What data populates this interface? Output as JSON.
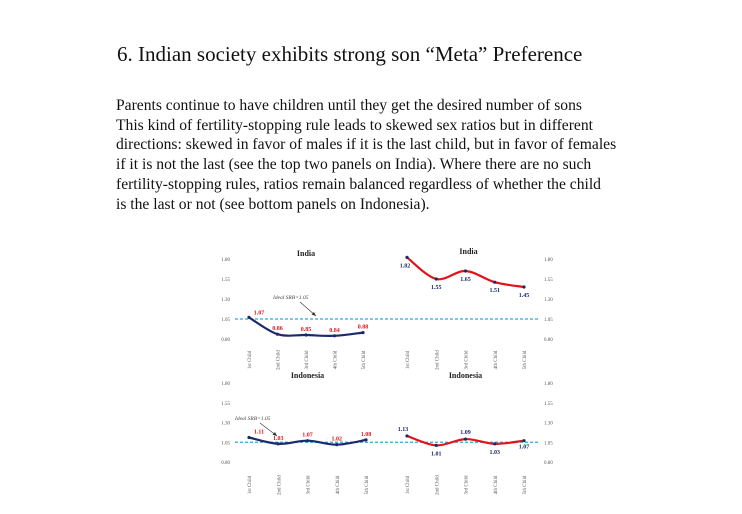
{
  "heading": "6. Indian society exhibits strong son “Meta” Preference",
  "paragraph_lines": [
    "Parents continue to have children until they get the desired number of sons",
    "This kind of fertility-stopping rule leads to skewed sex ratios but in different",
    "directions: skewed in favor of males if it is the last child, but in favor of females",
    "if it is not the last (see the top two panels on India). Where there are no such",
    "fertility-stopping rules, ratios remain balanced regardless of whether the child",
    "is the last or not (see bottom panels on Indonesia)."
  ],
  "colors": {
    "last_child_line": "#1b2a6b",
    "not_last_line": "#e3131b",
    "ideal_line": "#29a9e0",
    "marker": "#1b2a6b"
  },
  "chart_data": [
    {
      "type": "line",
      "title": "India",
      "categories": [
        "1st Child",
        "2nd Child",
        "3rd Child",
        "4th Child",
        "5th Child"
      ],
      "values": [
        1.07,
        0.86,
        0.85,
        0.84,
        0.88
      ],
      "labels": [
        "1.07",
        "0.86",
        "0.85",
        "0.84",
        "0.88"
      ],
      "yticks": [
        "1.80",
        "1.55",
        "1.30",
        "1.05",
        "0.80"
      ],
      "ylim": [
        0.8,
        1.8
      ],
      "reference": {
        "value": 1.05,
        "label": "Ideal SRB=1.05"
      }
    },
    {
      "type": "line",
      "title": "India",
      "categories": [
        "1st Child",
        "2nd Child",
        "3rd Child",
        "4th Child",
        "5th Child"
      ],
      "values": [
        1.82,
        1.55,
        1.65,
        1.51,
        1.45
      ],
      "labels": [
        "1.82",
        "1.55",
        "1.65",
        "1.51",
        "1.45"
      ],
      "yticks": [
        "1.80",
        "1.55",
        "1.30",
        "1.05",
        "0.80"
      ],
      "ylim": [
        0.8,
        1.8
      ],
      "reference": {
        "value": 1.05
      }
    },
    {
      "type": "line",
      "title": "Indonesia",
      "categories": [
        "1st Child",
        "2nd Child",
        "3rd Child",
        "4th Child",
        "5th Child"
      ],
      "values": [
        1.11,
        1.03,
        1.07,
        1.02,
        1.08
      ],
      "labels": [
        "1.11",
        "1.03",
        "1.07",
        "1.02",
        "1.08"
      ],
      "yticks": [
        "1.80",
        "1.55",
        "1.30",
        "1.05",
        "0.80"
      ],
      "ylim": [
        0.8,
        1.8
      ],
      "reference": {
        "value": 1.05,
        "label": "Ideal SRB=1.05"
      }
    },
    {
      "type": "line",
      "title": "Indonesia",
      "categories": [
        "1st Child",
        "2nd Child",
        "3rd Child",
        "4th Child",
        "5th Child"
      ],
      "values": [
        1.13,
        1.01,
        1.09,
        1.03,
        1.07
      ],
      "labels": [
        "1.13",
        "1.01",
        "1.09",
        "1.03",
        "1.07"
      ],
      "yticks": [
        "1.80",
        "1.55",
        "1.30",
        "1.05",
        "0.80"
      ],
      "ylim": [
        0.8,
        1.8
      ],
      "reference": {
        "value": 1.05
      }
    }
  ]
}
